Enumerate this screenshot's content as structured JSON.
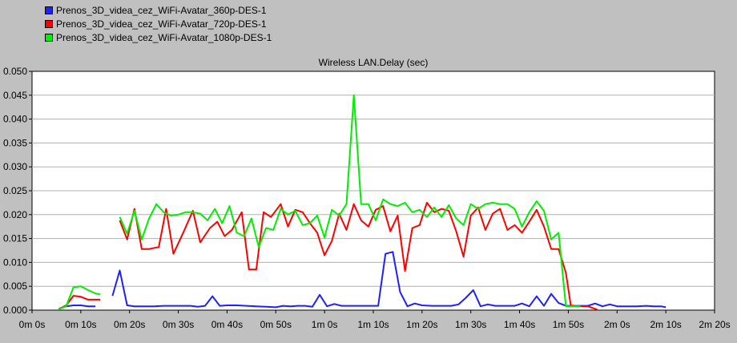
{
  "legend": [
    {
      "label": "Prenos_3D_videa_cez_WiFi-Avatar_360p-DES-1",
      "color": "#1f1fff"
    },
    {
      "label": "Prenos_3D_videa_cez_WiFi-Avatar_720p-DES-1",
      "color": "#ff0000"
    },
    {
      "label": "Prenos_3D_videa_cez_WiFi-Avatar_1080p-DES-1",
      "color": "#00ee00"
    }
  ],
  "chart_data": {
    "type": "line",
    "title": "Wireless LAN.Delay (sec)",
    "xlabel": "",
    "ylabel": "",
    "xlim": [
      0,
      140
    ],
    "ylim": [
      0,
      0.05
    ],
    "grid": true,
    "legend_position": "top-left",
    "y_ticks": [
      "0.000",
      "0.005",
      "0.010",
      "0.015",
      "0.020",
      "0.025",
      "0.030",
      "0.035",
      "0.040",
      "0.045",
      "0.050"
    ],
    "x_ticks": [
      {
        "value": 0,
        "label": "0m 0s"
      },
      {
        "value": 10,
        "label": "0m 10s"
      },
      {
        "value": 20,
        "label": "0m 20s"
      },
      {
        "value": 30,
        "label": "0m 30s"
      },
      {
        "value": 40,
        "label": "0m 40s"
      },
      {
        "value": 50,
        "label": "0m 50s"
      },
      {
        "value": 60,
        "label": "1m 0s"
      },
      {
        "value": 70,
        "label": "1m 10s"
      },
      {
        "value": 80,
        "label": "1m 20s"
      },
      {
        "value": 90,
        "label": "1m 30s"
      },
      {
        "value": 100,
        "label": "1m 40s"
      },
      {
        "value": 110,
        "label": "1m 50s"
      },
      {
        "value": 120,
        "label": "2m 0s"
      },
      {
        "value": 130,
        "label": "2m 10s"
      },
      {
        "value": 140,
        "label": "2m 20s"
      }
    ],
    "series": [
      {
        "name": "Prenos_3D_videa_cez_WiFi-Avatar_360p-DES-1",
        "color": "#1f1fff",
        "segments": [
          [
            [
              5.5,
              0.0003
            ],
            [
              7,
              0.0008
            ],
            [
              8.5,
              0.001
            ],
            [
              10,
              0.001
            ],
            [
              11.5,
              0.0008
            ],
            [
              13,
              0.0008
            ]
          ],
          [
            [
              16.5,
              0.003
            ],
            [
              18,
              0.0083
            ],
            [
              19.5,
              0.001
            ],
            [
              21,
              0.0008
            ],
            [
              23,
              0.0008
            ],
            [
              25,
              0.0008
            ],
            [
              27,
              0.0009
            ],
            [
              29,
              0.0009
            ],
            [
              31,
              0.0009
            ],
            [
              32.5,
              0.0009
            ],
            [
              34,
              0.0007
            ],
            [
              35.5,
              0.0009
            ],
            [
              37,
              0.0029
            ],
            [
              38.5,
              0.0009
            ],
            [
              40,
              0.001
            ],
            [
              42,
              0.001
            ],
            [
              44,
              0.0009
            ],
            [
              46,
              0.0008
            ],
            [
              48,
              0.0007
            ],
            [
              50,
              0.0006
            ],
            [
              51.5,
              0.0009
            ],
            [
              53,
              0.0008
            ],
            [
              54.5,
              0.0009
            ],
            [
              56,
              0.0009
            ],
            [
              57.5,
              0.0007
            ],
            [
              59,
              0.0032
            ],
            [
              60.5,
              0.0008
            ],
            [
              62,
              0.0013
            ],
            [
              63.5,
              0.0009
            ],
            [
              65,
              0.0009
            ],
            [
              67,
              0.0009
            ],
            [
              69,
              0.0009
            ],
            [
              71,
              0.0009
            ],
            [
              72.5,
              0.0118
            ],
            [
              74,
              0.0122
            ],
            [
              75.5,
              0.0038
            ],
            [
              77,
              0.0008
            ],
            [
              78.5,
              0.0014
            ],
            [
              80,
              0.001
            ],
            [
              82,
              0.0009
            ],
            [
              84,
              0.0009
            ],
            [
              86,
              0.0009
            ],
            [
              87.5,
              0.0012
            ],
            [
              89,
              0.0026
            ],
            [
              90.5,
              0.0042
            ],
            [
              92,
              0.0008
            ],
            [
              93.5,
              0.0012
            ],
            [
              95,
              0.0009
            ],
            [
              97,
              0.0009
            ],
            [
              99,
              0.0009
            ],
            [
              100.5,
              0.0014
            ],
            [
              102,
              0.0008
            ],
            [
              103.5,
              0.0029
            ],
            [
              105,
              0.0009
            ],
            [
              106.5,
              0.0034
            ],
            [
              108,
              0.0015
            ],
            [
              109.5,
              0.0009
            ],
            [
              111,
              0.0009
            ],
            [
              112.5,
              0.0009
            ],
            [
              114,
              0.0009
            ],
            [
              115.5,
              0.0014
            ],
            [
              117,
              0.0008
            ],
            [
              118.5,
              0.0012
            ],
            [
              120,
              0.0008
            ],
            [
              122,
              0.0008
            ],
            [
              124,
              0.0008
            ],
            [
              126,
              0.0009
            ],
            [
              127.5,
              0.0008
            ],
            [
              129,
              0.0008
            ],
            [
              130,
              0.0006
            ]
          ]
        ]
      },
      {
        "name": "Prenos_3D_videa_cez_WiFi-Avatar_720p-DES-1",
        "color": "#ff0000",
        "segments": [
          [
            [
              5.5,
              0.0002
            ],
            [
              7,
              0.001
            ],
            [
              8.5,
              0.003
            ],
            [
              10,
              0.0028
            ],
            [
              11.5,
              0.0022
            ],
            [
              13,
              0.0022
            ],
            [
              14,
              0.0022
            ]
          ],
          [
            [
              18,
              0.0188
            ],
            [
              19.5,
              0.0148
            ],
            [
              21,
              0.0212
            ],
            [
              22.5,
              0.0128
            ],
            [
              24,
              0.0128
            ],
            [
              26,
              0.0132
            ],
            [
              27.5,
              0.0212
            ],
            [
              29,
              0.0118
            ],
            [
              31,
              0.0162
            ],
            [
              33,
              0.0208
            ],
            [
              34.5,
              0.0142
            ],
            [
              36.5,
              0.0172
            ],
            [
              38,
              0.0185
            ],
            [
              39.5,
              0.0155
            ],
            [
              41,
              0.0168
            ],
            [
              43,
              0.0205
            ],
            [
              44.5,
              0.0085
            ],
            [
              46,
              0.0085
            ],
            [
              47.5,
              0.0205
            ],
            [
              49,
              0.0195
            ],
            [
              51,
              0.0222
            ],
            [
              52.5,
              0.0175
            ],
            [
              54,
              0.021
            ],
            [
              55.5,
              0.0205
            ],
            [
              57,
              0.0182
            ],
            [
              58.5,
              0.0162
            ],
            [
              60,
              0.0115
            ],
            [
              61.5,
              0.0145
            ],
            [
              63,
              0.0202
            ],
            [
              64.5,
              0.0168
            ],
            [
              66,
              0.0222
            ],
            [
              67.5,
              0.0188
            ],
            [
              69,
              0.0175
            ],
            [
              70.5,
              0.021
            ],
            [
              72,
              0.0218
            ],
            [
              73.5,
              0.0165
            ],
            [
              75,
              0.0198
            ],
            [
              76.5,
              0.0082
            ],
            [
              78,
              0.0172
            ],
            [
              79.5,
              0.0178
            ],
            [
              81,
              0.0225
            ],
            [
              82.5,
              0.0205
            ],
            [
              84,
              0.0212
            ],
            [
              85.5,
              0.0208
            ],
            [
              87,
              0.0165
            ],
            [
              88.5,
              0.0112
            ],
            [
              90,
              0.0198
            ],
            [
              91.5,
              0.0215
            ],
            [
              93,
              0.0168
            ],
            [
              94.5,
              0.0202
            ],
            [
              96,
              0.0212
            ],
            [
              97.5,
              0.0168
            ],
            [
              99,
              0.0178
            ],
            [
              100.5,
              0.0162
            ],
            [
              102,
              0.0185
            ],
            [
              103.5,
              0.021
            ],
            [
              105,
              0.0175
            ],
            [
              106.5,
              0.0128
            ],
            [
              108,
              0.0128
            ],
            [
              109.5,
              0.0078
            ],
            [
              110.5,
              0.001
            ],
            [
              112,
              0.0008
            ],
            [
              114,
              0.0008
            ],
            [
              116,
              0.0001
            ]
          ]
        ]
      },
      {
        "name": "Prenos_3D_videa_cez_WiFi-Avatar_1080p-DES-1",
        "color": "#00ee00",
        "segments": [
          [
            [
              5.5,
              0.0002
            ],
            [
              7,
              0.0008
            ],
            [
              8.5,
              0.0048
            ],
            [
              10,
              0.005
            ],
            [
              11.5,
              0.0042
            ],
            [
              13,
              0.0035
            ],
            [
              14,
              0.0033
            ]
          ],
          [
            [
              18,
              0.0195
            ],
            [
              19.5,
              0.016
            ],
            [
              21,
              0.0208
            ],
            [
              22.5,
              0.0148
            ],
            [
              24,
              0.0192
            ],
            [
              25.5,
              0.0222
            ],
            [
              27,
              0.0205
            ],
            [
              28.5,
              0.0198
            ],
            [
              30,
              0.02
            ],
            [
              31.5,
              0.0205
            ],
            [
              33,
              0.0205
            ],
            [
              34.5,
              0.0202
            ],
            [
              36,
              0.0188
            ],
            [
              37.5,
              0.0212
            ],
            [
              39,
              0.0182
            ],
            [
              40.5,
              0.0218
            ],
            [
              42,
              0.0162
            ],
            [
              43.5,
              0.0155
            ],
            [
              45,
              0.0192
            ],
            [
              46.5,
              0.0132
            ],
            [
              48,
              0.0172
            ],
            [
              49.5,
              0.0168
            ],
            [
              51,
              0.0212
            ],
            [
              52.5,
              0.02
            ],
            [
              54,
              0.0208
            ],
            [
              55.5,
              0.0178
            ],
            [
              57,
              0.0182
            ],
            [
              58.5,
              0.0198
            ],
            [
              60,
              0.0152
            ],
            [
              61.5,
              0.021
            ],
            [
              63,
              0.0198
            ],
            [
              64.5,
              0.0222
            ],
            [
              66,
              0.045
            ],
            [
              67.5,
              0.0222
            ],
            [
              69,
              0.0222
            ],
            [
              70.5,
              0.0188
            ],
            [
              72,
              0.0232
            ],
            [
              73.5,
              0.0222
            ],
            [
              75,
              0.0218
            ],
            [
              76.5,
              0.0225
            ],
            [
              78,
              0.0205
            ],
            [
              79.5,
              0.021
            ],
            [
              81,
              0.0195
            ],
            [
              82.5,
              0.0215
            ],
            [
              84,
              0.0195
            ],
            [
              85.5,
              0.022
            ],
            [
              87,
              0.0192
            ],
            [
              88.5,
              0.0178
            ],
            [
              90,
              0.0222
            ],
            [
              91.5,
              0.0212
            ],
            [
              93,
              0.0222
            ],
            [
              94.5,
              0.0225
            ],
            [
              96,
              0.0222
            ],
            [
              97.5,
              0.0222
            ],
            [
              99,
              0.0212
            ],
            [
              100.5,
              0.0175
            ],
            [
              102,
              0.0205
            ],
            [
              103.5,
              0.0228
            ],
            [
              105,
              0.0208
            ],
            [
              106.5,
              0.0148
            ],
            [
              108,
              0.0162
            ],
            [
              109.5,
              0.0008
            ],
            [
              111,
              0.0008
            ],
            [
              112.5,
              0.0008
            ]
          ]
        ]
      }
    ]
  }
}
